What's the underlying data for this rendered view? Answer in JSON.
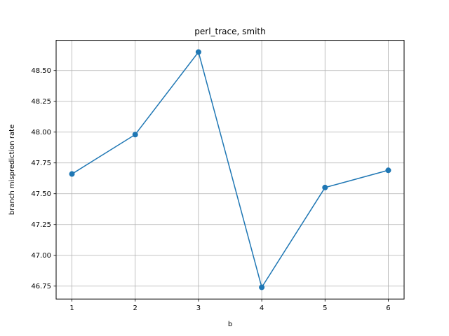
{
  "chart_data": {
    "type": "line",
    "title": "perl_trace, smith",
    "xlabel": "b",
    "ylabel": "branch misprediction rate",
    "x": [
      1,
      2,
      3,
      4,
      5,
      6
    ],
    "series": [
      {
        "values": [
          47.66,
          47.98,
          48.65,
          46.74,
          47.55,
          47.69
        ],
        "color": "#1f77b4"
      }
    ],
    "xticks": [
      1,
      2,
      3,
      4,
      5,
      6
    ],
    "xtick_labels": [
      "1",
      "2",
      "3",
      "4",
      "5",
      "6"
    ],
    "yticks": [
      46.75,
      47.0,
      47.25,
      47.5,
      47.75,
      48.0,
      48.25,
      48.5
    ],
    "ytick_labels": [
      "46.75",
      "47.00",
      "47.25",
      "47.50",
      "47.75",
      "48.00",
      "48.25",
      "48.50"
    ],
    "xlim": [
      0.75,
      6.25
    ],
    "ylim": [
      46.645,
      48.745
    ],
    "grid": true,
    "marker": "circle"
  }
}
